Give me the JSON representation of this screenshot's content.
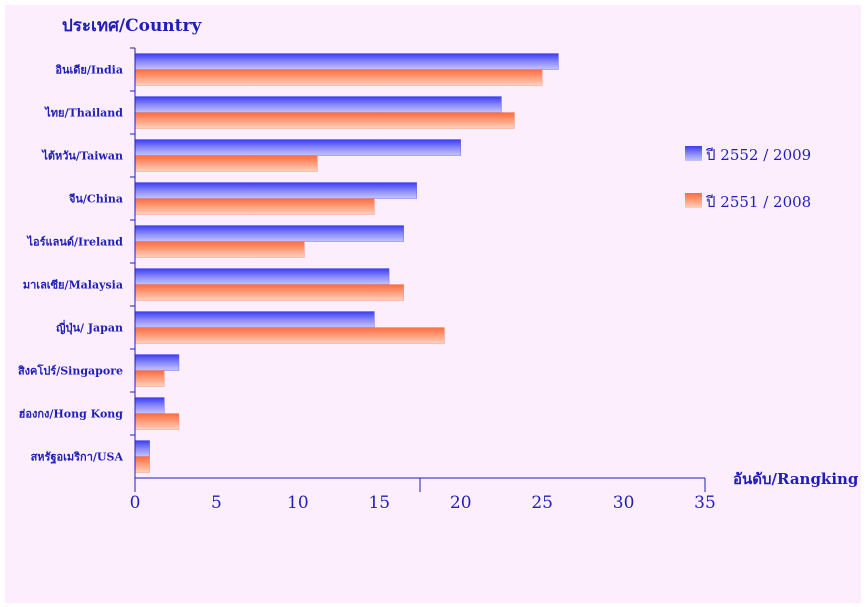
{
  "chart_data": {
    "type": "bar",
    "orientation": "horizontal",
    "ylabel": "ประเทศ/Country",
    "xlabel": "อันดับ/Rangking",
    "categories": [
      "อินเดีย/India",
      "ไทย/Thailand",
      "ไต้หวัน/Taiwan",
      "จีน/China",
      "ไอร์แลนด์/Ireland",
      "มาเลเซีย/Malaysia",
      "ญี่ปุ่น/ Japan",
      "สิงคโปร์/Singapore",
      "ฮ่องกง/Hong Kong",
      "สหรัฐอเมริกา/USA"
    ],
    "series": [
      {
        "name": "ปี 2552 / 2009",
        "color": "#6a6af0",
        "values": [
          26,
          22.5,
          20,
          17.3,
          16.5,
          15.6,
          14.7,
          2.7,
          1.8,
          0.9
        ]
      },
      {
        "name": "ปี 2551 / 2008",
        "color": "#ff9a7a",
        "values": [
          25,
          23.3,
          11.2,
          14.7,
          10.4,
          16.5,
          19,
          1.8,
          2.7,
          0.9
        ]
      }
    ],
    "xlim": [
      0,
      35
    ],
    "xticks": [
      "0",
      "5",
      "10",
      "15",
      "20",
      "25",
      "30",
      "35"
    ],
    "legend_position": "right",
    "grid": false
  }
}
